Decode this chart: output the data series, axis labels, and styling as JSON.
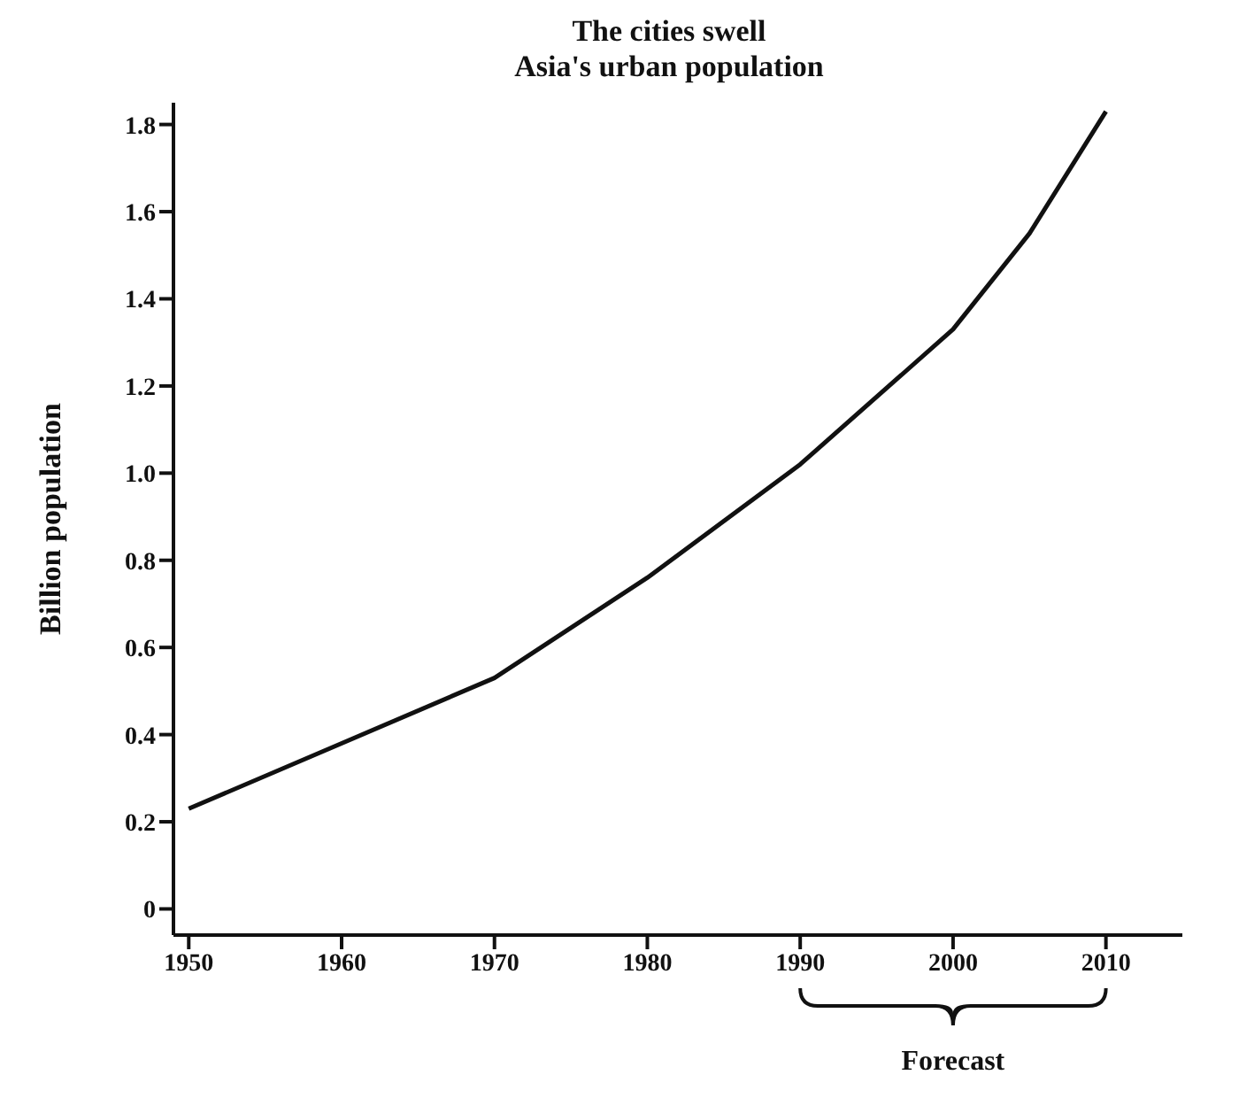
{
  "chart_data": {
    "type": "line",
    "title": "The cities swell",
    "subtitle": "Asia's urban population",
    "ylabel": "Billion population",
    "x": [
      1950,
      1960,
      1970,
      1980,
      1990,
      2000,
      2005,
      2010
    ],
    "series": [
      {
        "color": "#111111",
        "values": [
          0.23,
          0.38,
          0.53,
          0.76,
          1.02,
          1.33,
          1.55,
          1.83
        ]
      }
    ],
    "xlim": [
      1949,
      2015
    ],
    "xticks": [
      1950,
      1960,
      1970,
      1980,
      1990,
      2000,
      2010
    ],
    "ylim": [
      -0.06,
      1.85
    ],
    "yticks": [
      0,
      0.2,
      0.4,
      0.6,
      0.8,
      {
        "value": 1.0,
        "label": "1.0"
      },
      1.2,
      1.4,
      1.6,
      1.8
    ],
    "annotations": [
      "Forecast"
    ],
    "grid": false,
    "legend": false,
    "marker": "none",
    "line_style": "solid"
  }
}
